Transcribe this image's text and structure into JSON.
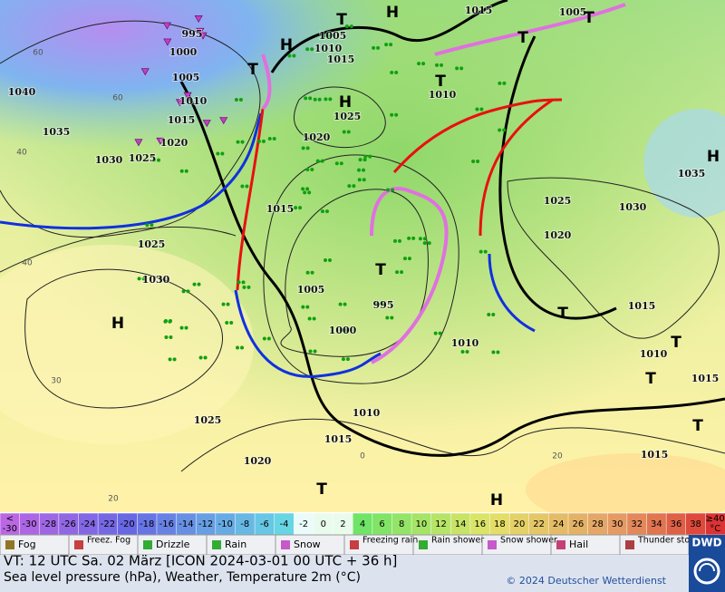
{
  "map": {
    "isobar_labels": [
      995,
      1000,
      1005,
      1010,
      1015,
      1020,
      1025,
      1030,
      1035,
      1040,
      1005,
      1010,
      1015,
      1015,
      1005,
      1010,
      1025,
      1020,
      1015,
      1025,
      1030,
      1005,
      995,
      1000,
      1010,
      1025,
      1020,
      1030,
      1035,
      1015,
      1010,
      1015,
      1010,
      1015,
      1025,
      1020,
      1015
    ],
    "temperature_labels": [
      60,
      60,
      40,
      40,
      30,
      20,
      20,
      0
    ],
    "pressure_systems": [
      "H",
      "H",
      "H",
      "H",
      "H",
      "H",
      "T",
      "T",
      "T",
      "T",
      "T",
      "T",
      "T",
      "T",
      "T",
      "T",
      "T"
    ]
  },
  "colorbar": {
    "low": [
      "<",
      "-30"
    ],
    "values": [
      -30,
      -28,
      -26,
      -24,
      -22,
      -20,
      -18,
      -16,
      -14,
      -12,
      -10,
      -8,
      -6,
      -4,
      -2,
      0,
      2,
      4,
      6,
      8,
      10,
      12,
      14,
      16,
      18,
      20,
      22,
      24,
      26,
      28,
      30,
      32,
      34,
      36,
      38
    ],
    "high": [
      "≥40",
      "°C"
    ]
  },
  "legend": [
    "Fog",
    "Freez. Fog",
    "Drizzle",
    "Rain",
    "Snow",
    "Freezing rain",
    "Rain shower",
    "Snow shower",
    "Hail",
    "Thunder storm"
  ],
  "footer": {
    "valid_time": "VT: 12 UTC Sa.  02 März [ICON 2024-03-01  00 UTC + 36 h]",
    "description": "Sea level pressure (hPa), Weather, Temperature 2m (°C)",
    "copyright": "© 2024 Deutscher Wetterdienst",
    "logo": "DWD"
  }
}
